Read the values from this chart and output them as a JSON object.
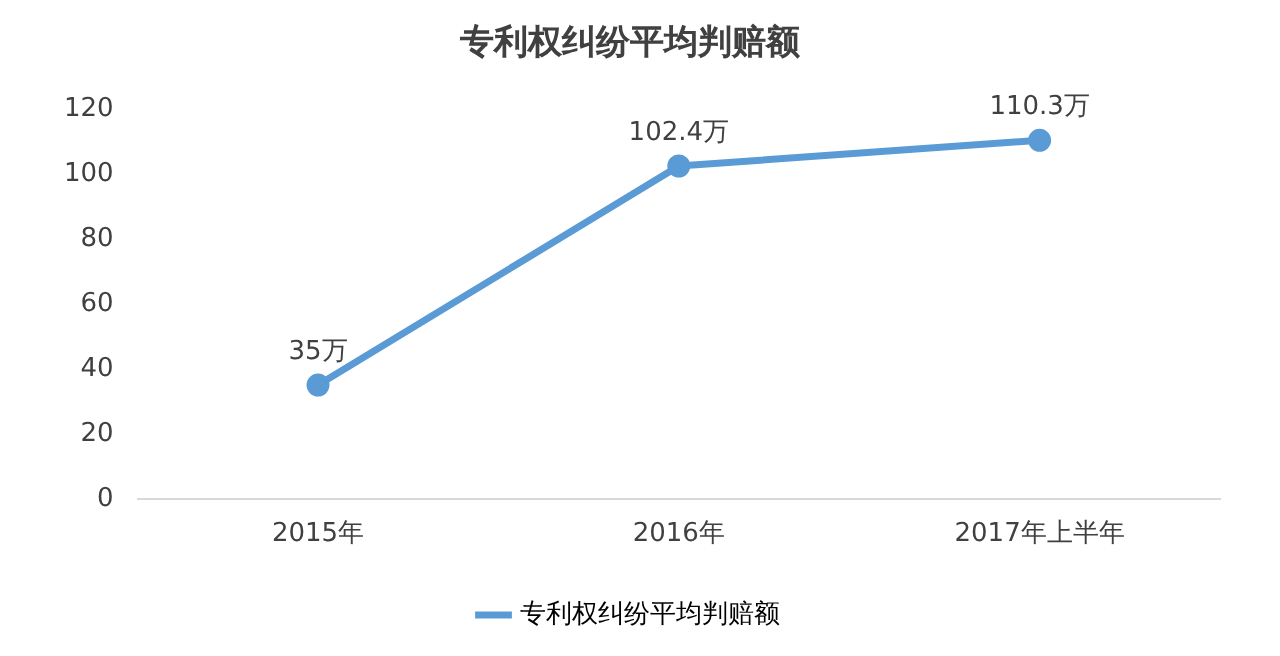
{
  "chart_data": {
    "type": "line",
    "title": "专利权纠纷平均判赔额",
    "categories": [
      "2015年",
      "2016年",
      "2017年上半年"
    ],
    "series": [
      {
        "name": "专利权纠纷平均判赔额",
        "color": "#5b9bd5",
        "values": [
          35,
          102.4,
          110.3
        ],
        "value_labels": [
          "35万",
          "102.4万",
          "110.3万"
        ]
      }
    ],
    "ylim": [
      0,
      120
    ],
    "yticks": [
      0,
      20,
      40,
      60,
      80,
      100,
      120
    ],
    "grid": false,
    "legend": "bottom",
    "marker": "circle",
    "line_style": "solid"
  }
}
